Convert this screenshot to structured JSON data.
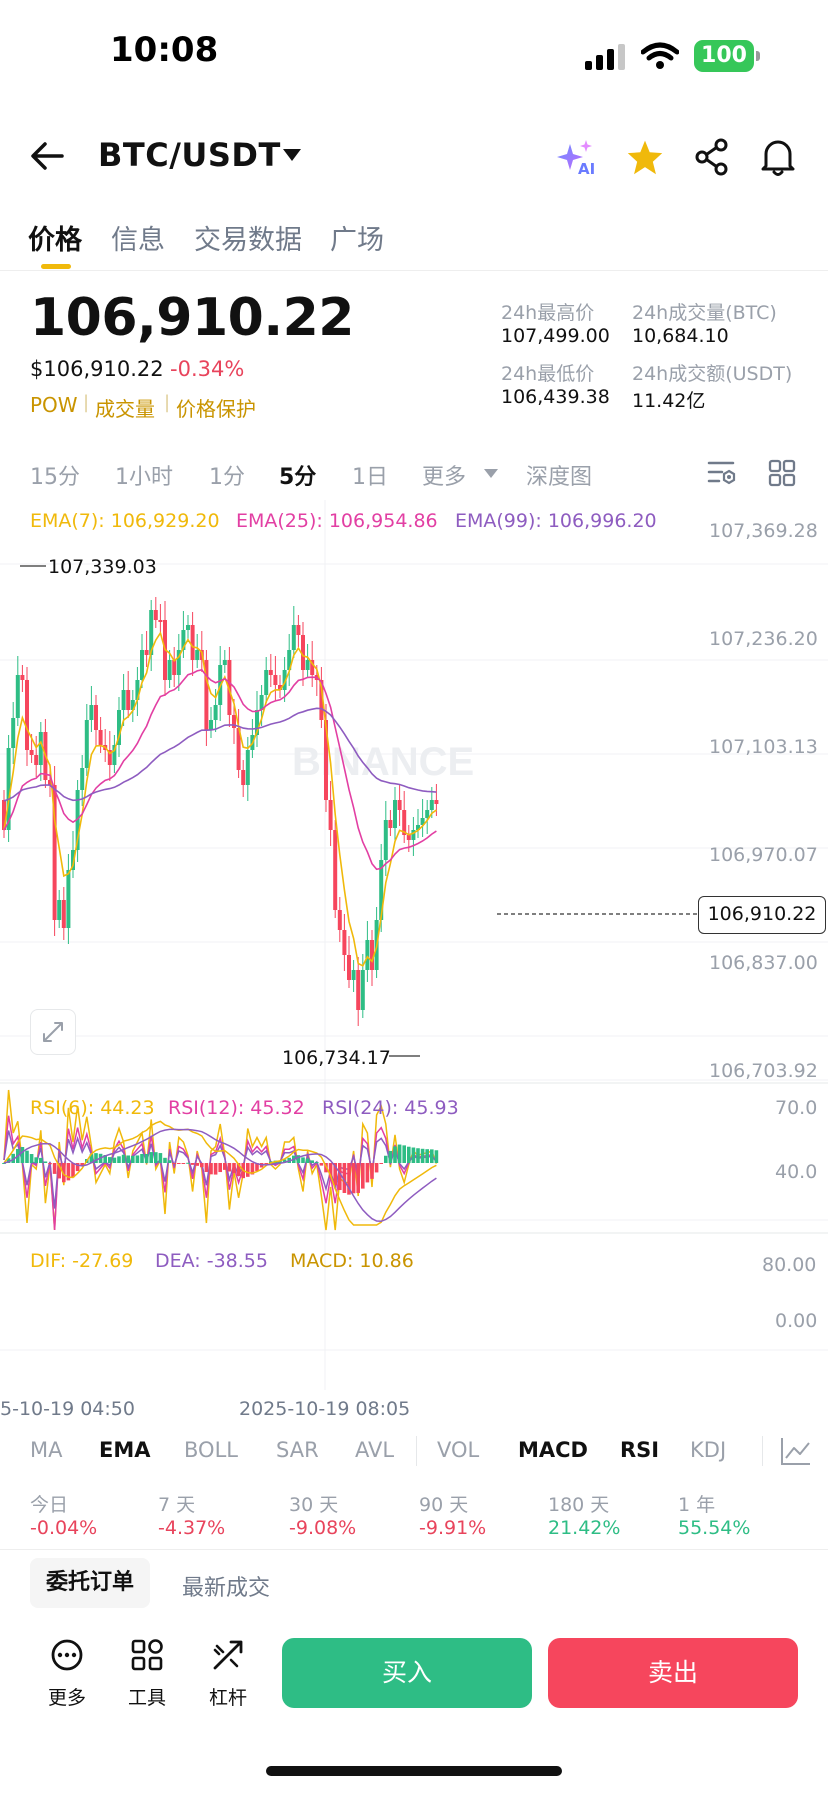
{
  "status_bar": {
    "time": "10:08",
    "battery": "100"
  },
  "header": {
    "pair": "BTC/USDT",
    "ai_badge": "AI"
  },
  "tabs": [
    {
      "label": "价格",
      "active": true
    },
    {
      "label": "信息",
      "active": false
    },
    {
      "label": "交易数据",
      "active": false
    },
    {
      "label": "广场",
      "active": false
    }
  ],
  "price": {
    "last": "106,910.22",
    "usd": "$106,910.22",
    "change": "-0.34%",
    "tags": [
      "POW",
      "成交量",
      "价格保护"
    ]
  },
  "stats": {
    "high_label": "24h最高价",
    "high_value": "107,499.00",
    "vol_btc_label": "24h成交量(BTC)",
    "vol_btc_value": "10,684.10",
    "low_label": "24h最低价",
    "low_value": "106,439.38",
    "vol_usdt_label": "24h成交额(USDT)",
    "vol_usdt_value": "11.42亿"
  },
  "intervals": [
    {
      "label": "15分",
      "active": false
    },
    {
      "label": "1小时",
      "active": false
    },
    {
      "label": "1分",
      "active": false
    },
    {
      "label": "5分",
      "active": true
    },
    {
      "label": "1日",
      "active": false
    },
    {
      "label": "更多",
      "active": false
    },
    {
      "label": "深度图",
      "active": false
    }
  ],
  "chart": {
    "ema7": "EMA(7): 106,929.20",
    "ema25": "EMA(25): 106,954.86",
    "ema99": "EMA(99): 106,996.20",
    "y_ticks": [
      "107,369.28",
      "107,236.20",
      "107,103.13",
      "106,970.07",
      "106,837.00",
      "106,703.92"
    ],
    "high_marker": "107,339.03",
    "low_marker": "106,734.17",
    "current_price_tag": "106,910.22",
    "watermark": "BINANCE",
    "rsi6": "RSI(6): 44.23",
    "rsi12": "RSI(12): 45.32",
    "rsi24": "RSI(24): 45.93",
    "rsi_ticks": [
      "70.0",
      "40.0"
    ],
    "dif": "DIF: -27.69",
    "dea": "DEA: -38.55",
    "macd": "MACD: 10.86",
    "macd_ticks": [
      "80.00",
      "0.00"
    ],
    "time_left": "5-10-19 04:50",
    "time_mid": "2025-10-19 08:05",
    "colors": {
      "up": "#2ebd85",
      "down": "#f6465d",
      "ema7": "#f0b90b",
      "ema25": "#e23fa3",
      "ema99": "#8e5cc0"
    }
  },
  "indicators": [
    {
      "label": "MA",
      "active": false
    },
    {
      "label": "EMA",
      "active": true
    },
    {
      "label": "BOLL",
      "active": false
    },
    {
      "label": "SAR",
      "active": false
    },
    {
      "label": "AVL",
      "active": false
    },
    {
      "label": "VOL",
      "active": false
    },
    {
      "label": "MACD",
      "active": true
    },
    {
      "label": "RSI",
      "active": true
    },
    {
      "label": "KDJ",
      "active": false
    }
  ],
  "performance": [
    {
      "label": "今日",
      "value": "-0.04%",
      "color": "#e8445c"
    },
    {
      "label": "7 天",
      "value": "-4.37%",
      "color": "#e8445c"
    },
    {
      "label": "30 天",
      "value": "-9.08%",
      "color": "#e8445c"
    },
    {
      "label": "90 天",
      "value": "-9.91%",
      "color": "#e8445c"
    },
    {
      "label": "180 天",
      "value": "21.42%",
      "color": "#2ebd85"
    },
    {
      "label": "1 年",
      "value": "55.54%",
      "color": "#2ebd85"
    }
  ],
  "order_tabs": {
    "active": "委托订单",
    "other": "最新成交"
  },
  "bottom": {
    "more": "更多",
    "tools": "工具",
    "leverage": "杠杆",
    "buy": "买入",
    "sell": "卖出"
  }
}
